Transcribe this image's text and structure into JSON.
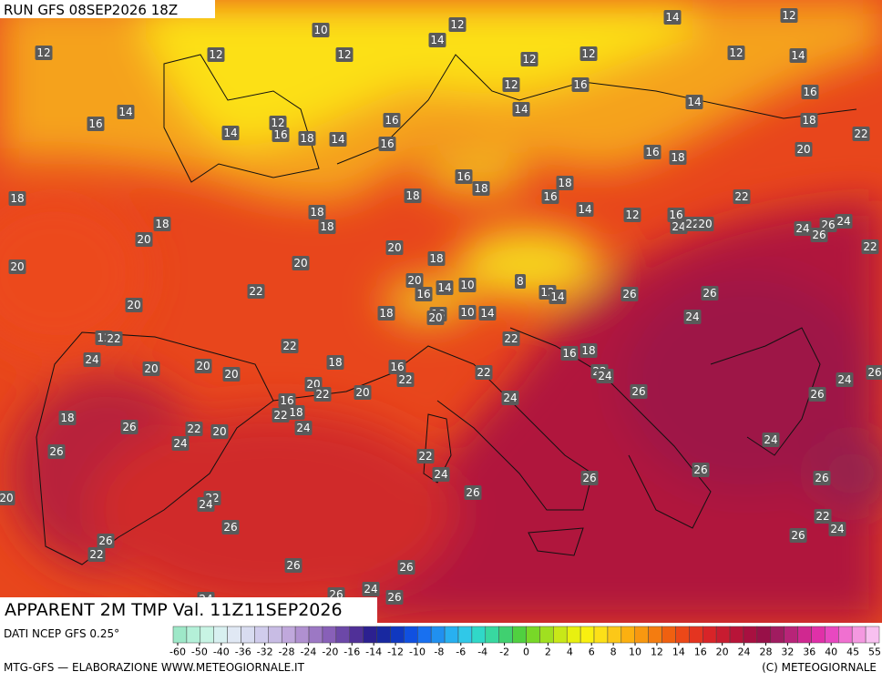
{
  "header": {
    "run": "RUN GFS 08SEP2026 18Z"
  },
  "title": "APPARENT 2M TMP Val. 11Z11SEP2026",
  "map": {
    "labels": [
      "12",
      "12",
      "10",
      "12",
      "12",
      "14",
      "12",
      "12",
      "14",
      "12",
      "12",
      "14",
      "12",
      "16",
      "16",
      "14",
      "14",
      "14",
      "16",
      "12",
      "16",
      "14",
      "18",
      "14",
      "16",
      "16",
      "18",
      "22",
      "16",
      "18",
      "20",
      "18",
      "16",
      "18",
      "18",
      "16",
      "18",
      "22",
      "18",
      "18",
      "18",
      "20",
      "14",
      "12",
      "16",
      "24",
      "22",
      "20",
      "24",
      "26",
      "24",
      "26",
      "22",
      "20",
      "20",
      "20",
      "18",
      "20",
      "16",
      "14",
      "10",
      "8",
      "12",
      "14",
      "26",
      "26",
      "22",
      "20",
      "18",
      "18",
      "20",
      "10",
      "14",
      "24",
      "12",
      "22",
      "22",
      "22",
      "16",
      "18",
      "24",
      "18",
      "16",
      "22",
      "22",
      "20",
      "20",
      "20",
      "20",
      "22",
      "20",
      "22",
      "24",
      "26",
      "24",
      "26",
      "26",
      "16",
      "22",
      "18",
      "24",
      "18",
      "26",
      "22",
      "20",
      "24",
      "24",
      "26",
      "24",
      "22",
      "24",
      "26",
      "26",
      "26",
      "26",
      "22",
      "24",
      "20",
      "26",
      "22",
      "24",
      "26",
      "26",
      "22",
      "26",
      "26",
      "24",
      "26",
      "26",
      "24"
    ]
  },
  "colorbar": {
    "ticks": [
      -60,
      -50,
      -40,
      -36,
      -32,
      -28,
      -24,
      -20,
      -16,
      -14,
      -12,
      -10,
      -8,
      -6,
      -4,
      -2,
      0,
      2,
      4,
      6,
      8,
      10,
      12,
      14,
      16,
      20,
      24,
      28,
      32,
      36,
      40,
      45,
      55
    ]
  },
  "footer": {
    "source": "DATI NCEP GFS 0.25°",
    "credit": "MTG-GFS — ELABORAZIONE WWW.METEOGIORNALE.IT",
    "copyright": "(C) METEOGIORNALE"
  }
}
